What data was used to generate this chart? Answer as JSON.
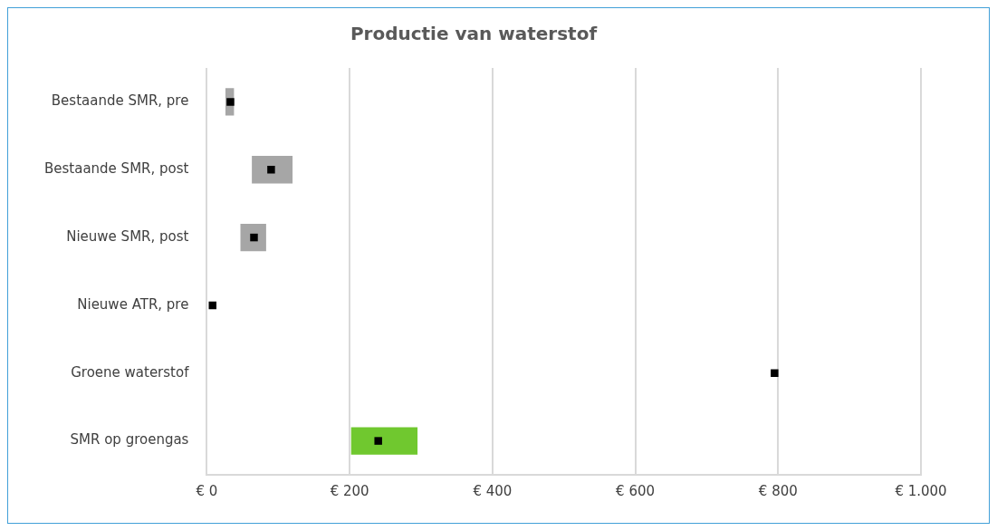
{
  "chart_data": {
    "type": "bar",
    "orientation": "horizontal",
    "title": "Productie van waterstof",
    "categories": [
      "Bestaande SMR, pre",
      "Bestaande SMR, post",
      "Nieuwe SMR, post",
      "Nieuwe ATR, pre",
      "Groene waterstof",
      "SMR op groengas"
    ],
    "series": [
      {
        "colors": [
          "#a6a6a6",
          "#a6a6a6",
          "#a6a6a6",
          "#a6a6a6",
          "#a6a6a6",
          "#70c82f"
        ],
        "base": [
          26,
          63,
          47,
          null,
          null,
          202
        ],
        "values": [
          12,
          57,
          36,
          null,
          null,
          93
        ]
      },
      {
        "type": "scatter",
        "color": "#000000",
        "marker": "square",
        "x": [
          "Bestaande SMR, pre",
          "Bestaande SMR, post",
          "Nieuwe SMR, post",
          "Nieuwe ATR, pre",
          "Groene waterstof",
          "SMR op groengas"
        ],
        "values": [
          33,
          90,
          66,
          8,
          795,
          240
        ]
      }
    ],
    "xlim": [
      0,
      1000
    ],
    "xticks": [
      {
        "value": 0,
        "label": "€ 0"
      },
      {
        "value": 200,
        "label": "€ 200"
      },
      {
        "value": 400,
        "label": "€ 400"
      },
      {
        "value": 600,
        "label": "€ 600"
      },
      {
        "value": 800,
        "label": "€ 800"
      },
      {
        "value": 1000,
        "label": "€ 1.000"
      }
    ],
    "grid": "x",
    "legend": false
  }
}
